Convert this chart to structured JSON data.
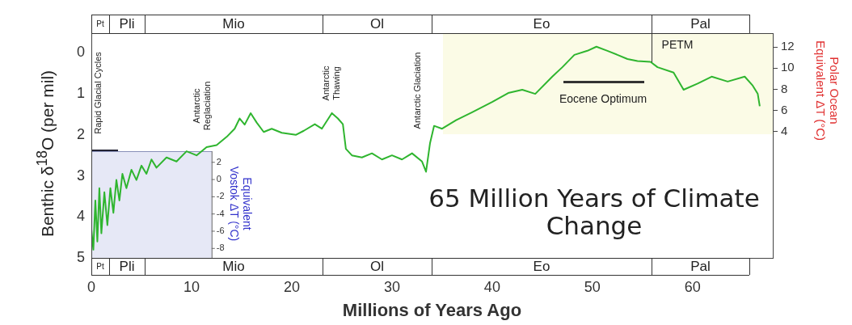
{
  "chart_data": {
    "type": "line",
    "title": "65 Million Years of Climate Change",
    "xlabel": "Millions of Years Ago",
    "ylabel": "Benthic δ$^{18}$O (per mil)",
    "y2label": "Polar Ocean Equivalent ΔT (°C)",
    "y3label": "Equivalent Vostok ΔT (°C)",
    "x": [
      0,
      0.2,
      0.4,
      0.6,
      0.8,
      1.0,
      1.3,
      1.6,
      1.9,
      2.2,
      2.5,
      2.8,
      3.1,
      3.5,
      4.0,
      4.5,
      5.0,
      5.5,
      6.0,
      6.5,
      7.5,
      8.5,
      9.5,
      10.5,
      11.5,
      12.5,
      13.5,
      14.3,
      14.8,
      15.3,
      15.9,
      16.5,
      17.2,
      18,
      19,
      20.4,
      21.2,
      22.3,
      23,
      24,
      24.6,
      25.1,
      25.4,
      26,
      27,
      28,
      29,
      30,
      31,
      32,
      33,
      33.4,
      33.8,
      34.2,
      35,
      36.4,
      38,
      40,
      41.6,
      43,
      44.3,
      46,
      47,
      48.2,
      49.5,
      50.4,
      51.5,
      52.5,
      53.5,
      54.5,
      55.8,
      56.5,
      58.1,
      59.1,
      60.5,
      61.9,
      63.5,
      65.2,
      66,
      66.5,
      66.7
    ],
    "values": [
      4.3,
      4.8,
      3.6,
      4.6,
      3.3,
      4.4,
      3.4,
      4.2,
      3.3,
      3.9,
      3.1,
      3.6,
      2.95,
      3.3,
      2.85,
      3.1,
      2.75,
      2.95,
      2.6,
      2.8,
      2.55,
      2.65,
      2.4,
      2.5,
      2.3,
      2.25,
      2.05,
      1.85,
      1.6,
      1.75,
      1.47,
      1.7,
      1.93,
      1.85,
      1.95,
      2.0,
      1.9,
      1.74,
      1.85,
      1.47,
      1.6,
      1.74,
      2.34,
      2.5,
      2.55,
      2.45,
      2.6,
      2.5,
      2.6,
      2.45,
      2.65,
      2.9,
      2.2,
      1.78,
      1.85,
      1.64,
      1.45,
      1.2,
      0.98,
      0.9,
      1.0,
      0.58,
      0.35,
      0.05,
      -0.05,
      -0.15,
      -0.05,
      0.05,
      0.15,
      0.2,
      0.22,
      0.35,
      0.48,
      0.9,
      0.75,
      0.58,
      0.7,
      0.58,
      0.8,
      1.0,
      1.3
    ],
    "color": "#2fb52f",
    "xlim": [
      0,
      68
    ],
    "xticks": [
      0,
      10,
      20,
      30,
      40,
      50,
      60
    ],
    "ylim": [
      5,
      -0.48
    ],
    "yticks": [
      0,
      1,
      2,
      3,
      4,
      5
    ],
    "y2lim": [
      -7.9,
      13.3
    ],
    "y2ticks": [
      4,
      6,
      8,
      10,
      12
    ],
    "y3lim": [
      -9.1,
      17
    ],
    "y3ticks": [
      2,
      0,
      -2,
      -4,
      -6,
      -8
    ],
    "annotations": [
      "Rapid Glacial Cycles",
      "Antarctic Reglaciation",
      "Antarctic Thawing",
      "Antarctic Glaciation",
      "Eocene Optimum",
      "PETM",
      "Pt",
      "Pli",
      "Mio",
      "Ol",
      "Eo",
      "Pal"
    ],
    "grid": false,
    "legend": false,
    "marker": "none",
    "line_style": "solid"
  }
}
